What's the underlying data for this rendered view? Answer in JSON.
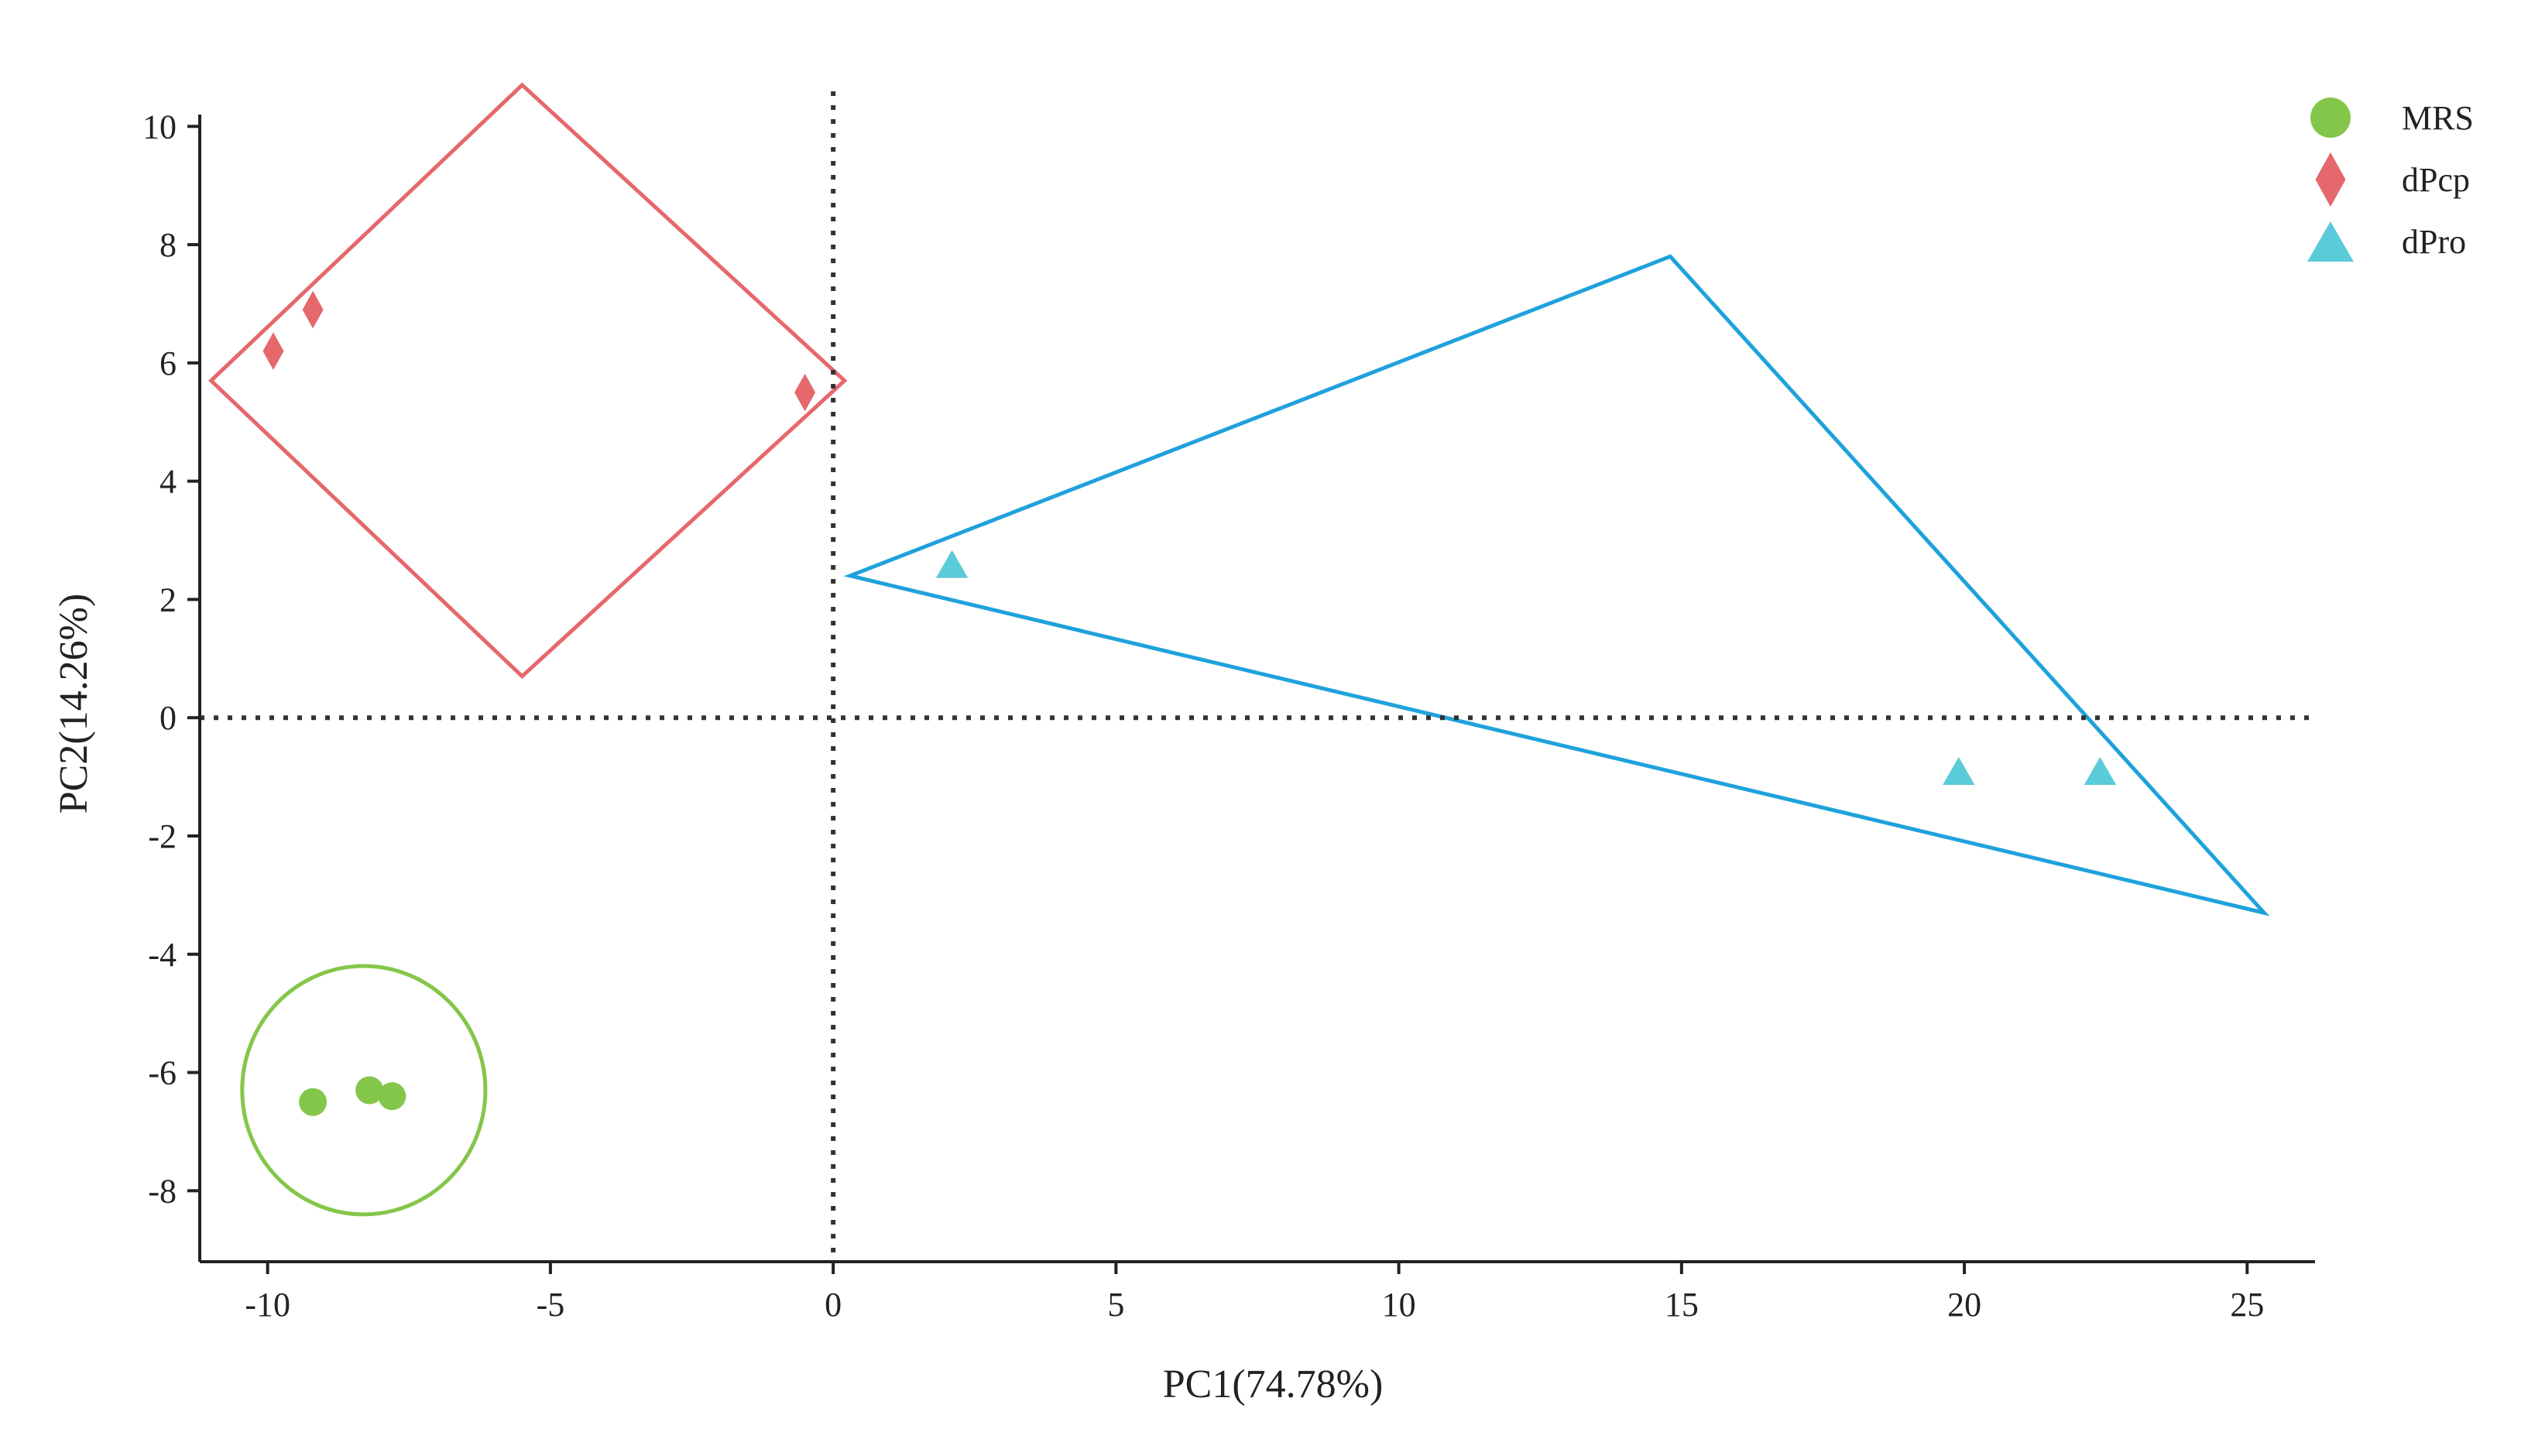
{
  "chart_data": {
    "type": "scatter",
    "title": "",
    "xlabel": "PC1(74.78%)",
    "ylabel": "PC2(14.26%)",
    "xlim": [
      -11.2,
      26.2
    ],
    "ylim": [
      -9.2,
      10.2
    ],
    "xticks": [
      -10,
      -5,
      0,
      5,
      10,
      15,
      20,
      25
    ],
    "yticks": [
      -8,
      -6,
      -4,
      -2,
      0,
      2,
      4,
      6,
      8,
      10
    ],
    "grid": false,
    "reference_lines": {
      "x": 0,
      "y": 0,
      "style": "dotted",
      "color": "#333333"
    },
    "legend": {
      "position": "top-right"
    },
    "series": [
      {
        "name": "MRS",
        "marker": "circle",
        "color": "#84C64A",
        "x": [
          -9.2,
          -8.2,
          -7.8
        ],
        "y": [
          -6.5,
          -6.3,
          -6.4
        ],
        "hull": {
          "shape": "ellipse",
          "center": [
            -8.3,
            -6.3
          ],
          "radius_x": 2.15,
          "radius_y": 2.1
        }
      },
      {
        "name": "dPcp",
        "marker": "diamond",
        "color": "#E5686C",
        "x": [
          -9.9,
          -9.2,
          -0.5
        ],
        "y": [
          6.2,
          6.9,
          5.5
        ],
        "hull": {
          "shape": "polygon",
          "vertices": [
            [
              -5.5,
              10.7
            ],
            [
              0.2,
              5.7
            ],
            [
              -5.5,
              0.7
            ],
            [
              -11.0,
              5.7
            ]
          ]
        }
      },
      {
        "name": "dPro",
        "marker": "triangle",
        "color": "#5ACBD8",
        "x": [
          2.1,
          19.9,
          22.4
        ],
        "y": [
          2.6,
          -0.9,
          -0.9
        ],
        "hull": {
          "shape": "polygon",
          "vertices": [
            [
              0.3,
              2.4
            ],
            [
              14.8,
              7.8
            ],
            [
              25.3,
              -3.3
            ]
          ]
        },
        "hull_color": "#1FA2DC"
      }
    ]
  }
}
